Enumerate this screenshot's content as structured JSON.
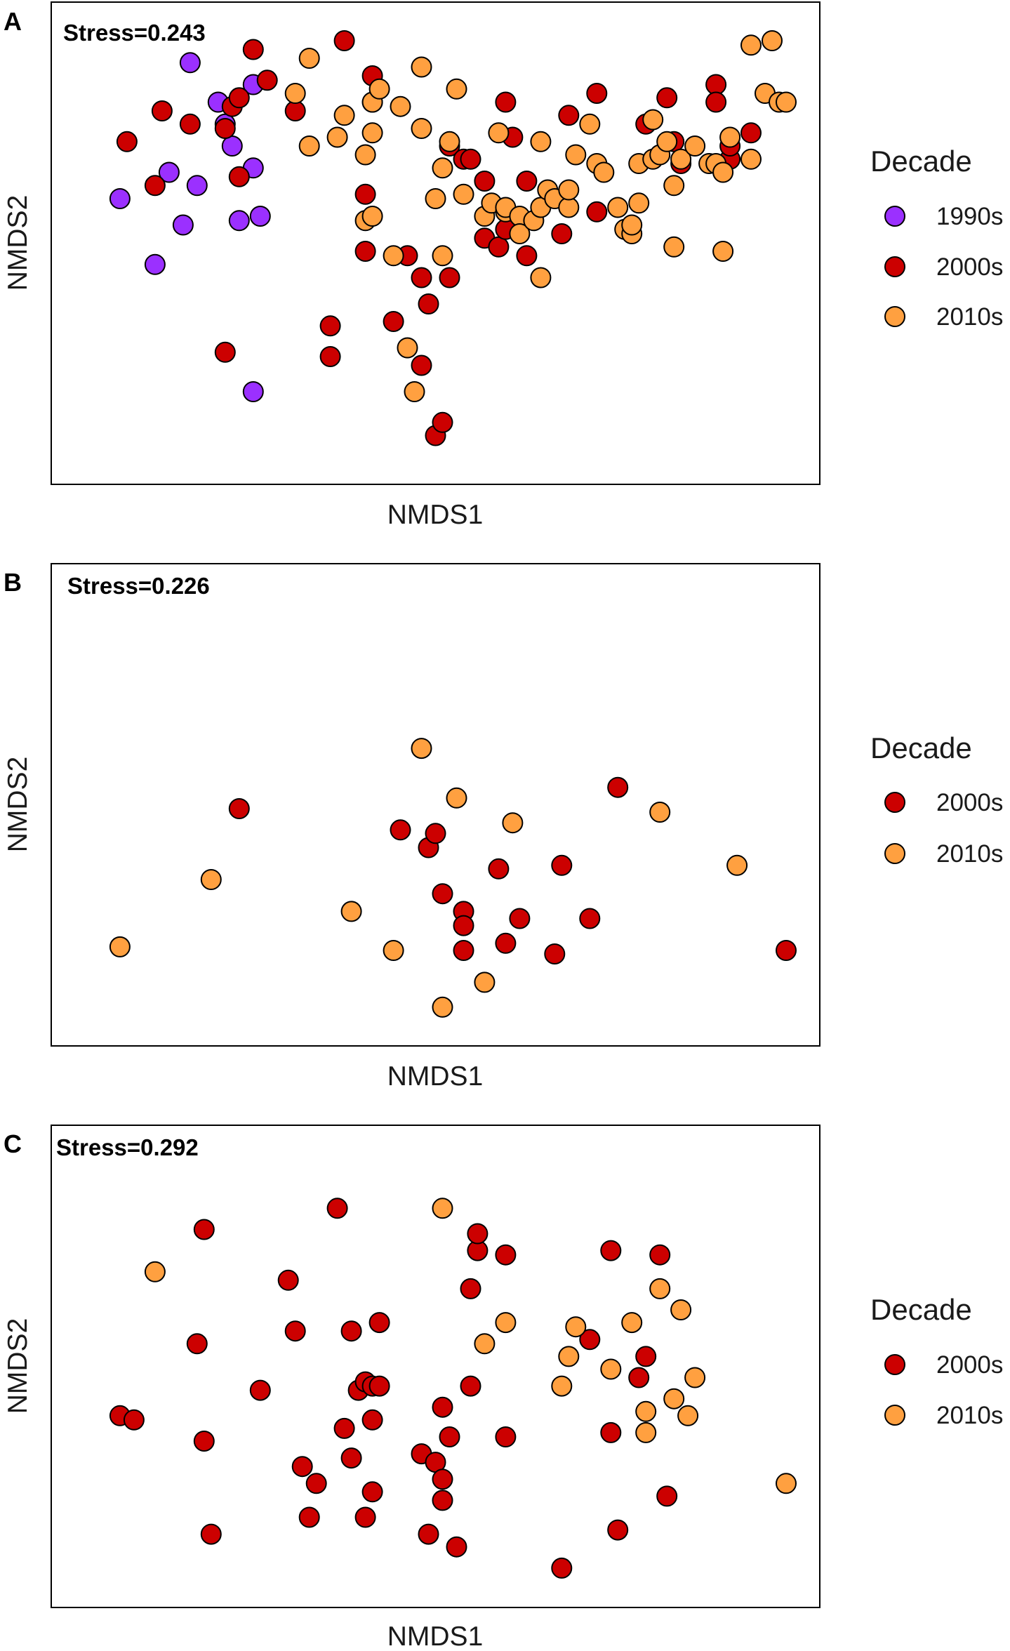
{
  "chart_data": [
    {
      "type": "scatter",
      "panel": "A",
      "stress": "Stress=0.243",
      "xlabel": "NMDS1",
      "ylabel": "NMDS2",
      "legend": {
        "title": "Decade",
        "entries": [
          "1990s",
          "2000s",
          "2010s"
        ]
      },
      "series": [
        {
          "name": "1990s",
          "color": "#9b30ff",
          "points": [
            [
              5,
              60
            ],
            [
              10,
              45
            ],
            [
              12,
              66
            ],
            [
              14,
              54
            ],
            [
              15,
              91
            ],
            [
              16,
              63
            ],
            [
              19,
              82
            ],
            [
              20,
              77
            ],
            [
              21,
              72
            ],
            [
              22,
              55
            ],
            [
              24,
              86
            ],
            [
              24,
              67
            ],
            [
              24,
              16
            ],
            [
              25,
              56
            ]
          ]
        },
        {
          "name": "2000s",
          "color": "#cc0000",
          "points": [
            [
              6,
              73
            ],
            [
              10,
              63
            ],
            [
              11,
              80
            ],
            [
              15,
              77
            ],
            [
              20,
              25
            ],
            [
              20,
              76
            ],
            [
              21,
              81
            ],
            [
              22,
              65
            ],
            [
              22,
              83
            ],
            [
              24,
              94
            ],
            [
              26,
              87
            ],
            [
              30,
              80
            ],
            [
              35,
              24
            ],
            [
              35,
              31
            ],
            [
              37,
              96
            ],
            [
              40,
              48
            ],
            [
              40,
              61
            ],
            [
              41,
              88
            ],
            [
              41,
              82
            ],
            [
              44,
              32
            ],
            [
              46,
              47
            ],
            [
              48,
              42
            ],
            [
              48,
              22
            ],
            [
              49,
              36
            ],
            [
              50,
              6
            ],
            [
              51,
              9
            ],
            [
              52,
              42
            ],
            [
              52,
              72
            ],
            [
              54,
              69
            ],
            [
              55,
              69
            ],
            [
              57,
              64
            ],
            [
              57,
              51
            ],
            [
              59,
              49
            ],
            [
              60,
              82
            ],
            [
              60,
              53
            ],
            [
              61,
              74
            ],
            [
              63,
              64
            ],
            [
              63,
              47
            ],
            [
              68,
              52
            ],
            [
              69,
              79
            ],
            [
              73,
              57
            ],
            [
              73,
              84
            ],
            [
              80,
              77
            ],
            [
              83,
              83
            ],
            [
              84,
              73
            ],
            [
              85,
              68
            ],
            [
              90,
              86
            ],
            [
              90,
              82
            ],
            [
              92,
              69
            ],
            [
              92,
              72
            ],
            [
              95,
              75
            ]
          ]
        },
        {
          "name": "2010s",
          "color": "#ffa040",
          "points": [
            [
              30,
              84
            ],
            [
              32,
              92
            ],
            [
              32,
              72
            ],
            [
              36,
              74
            ],
            [
              37,
              79
            ],
            [
              40,
              70
            ],
            [
              40,
              55
            ],
            [
              41,
              56
            ],
            [
              41,
              82
            ],
            [
              41,
              75
            ],
            [
              42,
              85
            ],
            [
              45,
              81
            ],
            [
              44,
              47
            ],
            [
              46,
              26
            ],
            [
              47,
              16
            ],
            [
              48,
              90
            ],
            [
              48,
              76
            ],
            [
              50,
              60
            ],
            [
              51,
              67
            ],
            [
              51,
              47
            ],
            [
              52,
              73
            ],
            [
              53,
              85
            ],
            [
              54,
              61
            ],
            [
              57,
              56
            ],
            [
              58,
              59
            ],
            [
              59,
              75
            ],
            [
              60,
              57
            ],
            [
              60,
              58
            ],
            [
              62,
              56
            ],
            [
              62,
              52
            ],
            [
              64,
              55
            ],
            [
              65,
              73
            ],
            [
              65,
              58
            ],
            [
              65,
              42
            ],
            [
              66,
              62
            ],
            [
              67,
              60
            ],
            [
              69,
              58
            ],
            [
              69,
              62
            ],
            [
              70,
              70
            ],
            [
              72,
              77
            ],
            [
              73,
              68
            ],
            [
              74,
              66
            ],
            [
              76,
              58
            ],
            [
              77,
              53
            ],
            [
              78,
              52
            ],
            [
              78,
              54
            ],
            [
              79,
              59
            ],
            [
              79,
              68
            ],
            [
              81,
              69
            ],
            [
              81,
              78
            ],
            [
              82,
              70
            ],
            [
              83,
              73
            ],
            [
              84,
              63
            ],
            [
              84,
              49
            ],
            [
              85,
              69
            ],
            [
              87,
              72
            ],
            [
              89,
              68
            ],
            [
              90,
              68
            ],
            [
              91,
              66
            ],
            [
              91,
              48
            ],
            [
              92,
              74
            ],
            [
              95,
              69
            ],
            [
              95,
              95
            ],
            [
              97,
              84
            ],
            [
              98,
              96
            ],
            [
              99,
              82
            ],
            [
              100,
              82
            ]
          ]
        }
      ]
    },
    {
      "type": "scatter",
      "panel": "B",
      "stress": "Stress=0.226",
      "xlabel": "NMDS1",
      "ylabel": "NMDS2",
      "legend": {
        "title": "Decade",
        "entries": [
          "2000s",
          "2010s"
        ]
      },
      "series": [
        {
          "name": "2000s",
          "color": "#cc0000",
          "points": [
            [
              22,
              61
            ],
            [
              45,
              55
            ],
            [
              49,
              50
            ],
            [
              50,
              54
            ],
            [
              51,
              37
            ],
            [
              54,
              32
            ],
            [
              54,
              28
            ],
            [
              54,
              21
            ],
            [
              59,
              44
            ],
            [
              60,
              23
            ],
            [
              62,
              30
            ],
            [
              67,
              20
            ],
            [
              68,
              45
            ],
            [
              72,
              30
            ],
            [
              76,
              67
            ],
            [
              100,
              21
            ]
          ]
        },
        {
          "name": "2010s",
          "color": "#ffa040",
          "points": [
            [
              5,
              22
            ],
            [
              18,
              41
            ],
            [
              38,
              32
            ],
            [
              44,
              21
            ],
            [
              48,
              78
            ],
            [
              51,
              5
            ],
            [
              53,
              64
            ],
            [
              57,
              12
            ],
            [
              61,
              57
            ],
            [
              82,
              60
            ],
            [
              93,
              45
            ]
          ]
        }
      ]
    },
    {
      "type": "scatter",
      "panel": "C",
      "stress": "Stress=0.292",
      "xlabel": "NMDS1",
      "ylabel": "NMDS2",
      "legend": {
        "title": "Decade",
        "entries": [
          "2000s",
          "2010s"
        ]
      },
      "series": [
        {
          "name": "2000s",
          "color": "#cc0000",
          "points": [
            [
              5,
              40
            ],
            [
              7,
              39
            ],
            [
              16,
              57
            ],
            [
              17,
              84
            ],
            [
              17,
              34
            ],
            [
              18,
              12
            ],
            [
              25,
              46
            ],
            [
              29,
              72
            ],
            [
              30,
              60
            ],
            [
              31,
              28
            ],
            [
              32,
              16
            ],
            [
              33,
              24
            ],
            [
              36,
              89
            ],
            [
              37,
              37
            ],
            [
              38,
              60
            ],
            [
              38,
              30
            ],
            [
              39,
              46
            ],
            [
              40,
              16
            ],
            [
              40,
              48
            ],
            [
              41,
              47
            ],
            [
              41,
              39
            ],
            [
              41,
              22
            ],
            [
              42,
              47
            ],
            [
              42,
              62
            ],
            [
              48,
              31
            ],
            [
              49,
              12
            ],
            [
              50,
              29
            ],
            [
              51,
              25
            ],
            [
              51,
              20
            ],
            [
              51,
              42
            ],
            [
              52,
              35
            ],
            [
              53,
              9
            ],
            [
              55,
              70
            ],
            [
              55,
              47
            ],
            [
              56,
              79
            ],
            [
              56,
              83
            ],
            [
              60,
              78
            ],
            [
              60,
              35
            ],
            [
              68,
              4
            ],
            [
              72,
              58
            ],
            [
              75,
              36
            ],
            [
              75,
              79
            ],
            [
              76,
              13
            ],
            [
              79,
              49
            ],
            [
              80,
              54
            ],
            [
              82,
              78
            ],
            [
              83,
              21
            ]
          ]
        },
        {
          "name": "2010s",
          "color": "#ffa040",
          "points": [
            [
              10,
              74
            ],
            [
              51,
              89
            ],
            [
              57,
              57
            ],
            [
              60,
              62
            ],
            [
              68,
              47
            ],
            [
              69,
              54
            ],
            [
              70,
              61
            ],
            [
              75,
              51
            ],
            [
              78,
              62
            ],
            [
              80,
              36
            ],
            [
              80,
              41
            ],
            [
              82,
              70
            ],
            [
              84,
              44
            ],
            [
              85,
              65
            ],
            [
              86,
              40
            ],
            [
              87,
              49
            ],
            [
              100,
              24
            ]
          ]
        }
      ]
    }
  ]
}
